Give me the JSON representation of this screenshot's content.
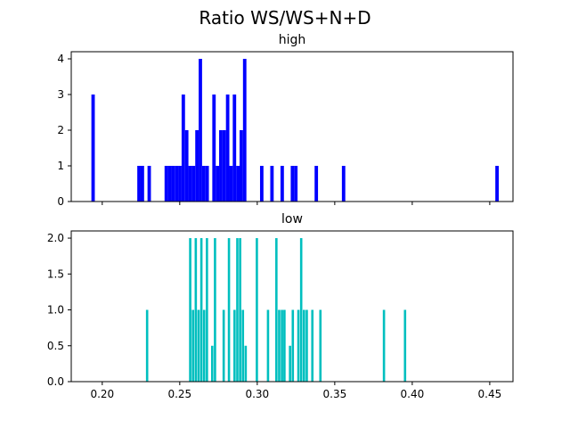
{
  "figure": {
    "title": "Ratio WS/WS+N+D"
  },
  "chart_data": [
    {
      "type": "bar",
      "title": "high",
      "color": "#0000ff",
      "bin_width": 0.0022,
      "xlim": [
        0.18,
        0.465
      ],
      "ylim": [
        0,
        4.2
      ],
      "x_ticks": [
        0.2,
        0.25,
        0.3,
        0.35,
        0.4,
        0.45
      ],
      "y_ticks": [
        0,
        1,
        2,
        3,
        4
      ],
      "show_x_tick_labels": false,
      "bars": [
        {
          "x": 0.193,
          "count": 3
        },
        {
          "x": 0.2226,
          "count": 1
        },
        {
          "x": 0.2248,
          "count": 1
        },
        {
          "x": 0.2292,
          "count": 1
        },
        {
          "x": 0.2402,
          "count": 1
        },
        {
          "x": 0.2424,
          "count": 1
        },
        {
          "x": 0.2446,
          "count": 1
        },
        {
          "x": 0.2468,
          "count": 1
        },
        {
          "x": 0.249,
          "count": 1
        },
        {
          "x": 0.2512,
          "count": 3
        },
        {
          "x": 0.2534,
          "count": 2
        },
        {
          "x": 0.2556,
          "count": 1
        },
        {
          "x": 0.2578,
          "count": 1
        },
        {
          "x": 0.26,
          "count": 2
        },
        {
          "x": 0.2622,
          "count": 4
        },
        {
          "x": 0.2644,
          "count": 1
        },
        {
          "x": 0.2666,
          "count": 1
        },
        {
          "x": 0.271,
          "count": 3
        },
        {
          "x": 0.2732,
          "count": 1
        },
        {
          "x": 0.2754,
          "count": 2
        },
        {
          "x": 0.2776,
          "count": 2
        },
        {
          "x": 0.2798,
          "count": 3
        },
        {
          "x": 0.282,
          "count": 1
        },
        {
          "x": 0.2842,
          "count": 3
        },
        {
          "x": 0.2864,
          "count": 1
        },
        {
          "x": 0.2886,
          "count": 2
        },
        {
          "x": 0.2908,
          "count": 4
        },
        {
          "x": 0.3018,
          "count": 1
        },
        {
          "x": 0.3084,
          "count": 1
        },
        {
          "x": 0.315,
          "count": 1
        },
        {
          "x": 0.3216,
          "count": 1
        },
        {
          "x": 0.3238,
          "count": 1
        },
        {
          "x": 0.337,
          "count": 1
        },
        {
          "x": 0.3546,
          "count": 1
        },
        {
          "x": 0.4536,
          "count": 1
        }
      ]
    },
    {
      "type": "bar",
      "title": "low",
      "color": "#00bfbf",
      "bin_width": 0.0015,
      "xlim": [
        0.18,
        0.465
      ],
      "ylim": [
        0,
        2.1
      ],
      "x_ticks": [
        0.2,
        0.25,
        0.3,
        0.35,
        0.4,
        0.45
      ],
      "x_tick_labels": [
        "0.20",
        "0.25",
        "0.30",
        "0.35",
        "0.40",
        "0.45"
      ],
      "y_ticks": [
        0,
        0.5,
        1.0,
        1.5,
        2.0
      ],
      "y_tick_labels": [
        "0.0",
        "0.5",
        "1.0",
        "1.5",
        "2.0"
      ],
      "show_x_tick_labels": true,
      "bars": [
        {
          "x": 0.2282,
          "count": 1
        },
        {
          "x": 0.256,
          "count": 2
        },
        {
          "x": 0.2578,
          "count": 1
        },
        {
          "x": 0.2596,
          "count": 2
        },
        {
          "x": 0.2614,
          "count": 1
        },
        {
          "x": 0.2632,
          "count": 2
        },
        {
          "x": 0.265,
          "count": 1
        },
        {
          "x": 0.2668,
          "count": 2
        },
        {
          "x": 0.2702,
          "count": 0.5
        },
        {
          "x": 0.272,
          "count": 2
        },
        {
          "x": 0.2776,
          "count": 1
        },
        {
          "x": 0.281,
          "count": 2
        },
        {
          "x": 0.2846,
          "count": 1
        },
        {
          "x": 0.2864,
          "count": 2
        },
        {
          "x": 0.2882,
          "count": 2
        },
        {
          "x": 0.29,
          "count": 1
        },
        {
          "x": 0.2918,
          "count": 0.5
        },
        {
          "x": 0.299,
          "count": 2
        },
        {
          "x": 0.3062,
          "count": 1
        },
        {
          "x": 0.3116,
          "count": 2
        },
        {
          "x": 0.3134,
          "count": 1
        },
        {
          "x": 0.3152,
          "count": 1
        },
        {
          "x": 0.3168,
          "count": 1
        },
        {
          "x": 0.3204,
          "count": 0.5
        },
        {
          "x": 0.3222,
          "count": 1
        },
        {
          "x": 0.3258,
          "count": 1
        },
        {
          "x": 0.3276,
          "count": 2
        },
        {
          "x": 0.3294,
          "count": 1
        },
        {
          "x": 0.3312,
          "count": 1
        },
        {
          "x": 0.3348,
          "count": 1
        },
        {
          "x": 0.34,
          "count": 1
        },
        {
          "x": 0.381,
          "count": 1
        },
        {
          "x": 0.3946,
          "count": 1
        }
      ]
    }
  ]
}
